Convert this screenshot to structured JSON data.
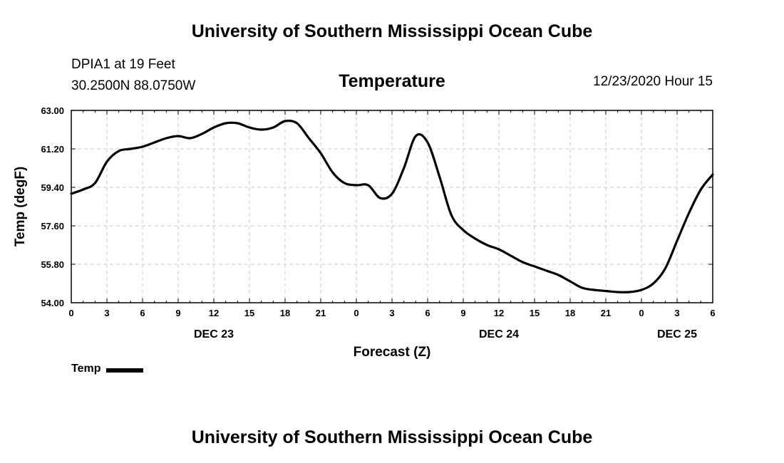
{
  "header": {
    "top_title": "University of Southern Mississippi Ocean Cube",
    "station_name": "DPIA1 at 19 Feet",
    "station_coords": "30.2500N 88.0750W",
    "variable_title": "Temperature",
    "run_time": "12/23/2020 Hour 15"
  },
  "footer": {
    "bottom_title": "University of Southern Mississippi Ocean Cube"
  },
  "legend": {
    "label": "Temp"
  },
  "colors": {
    "line": "#000000",
    "grid": "#c8c8c8",
    "background": "#ffffff"
  },
  "chart_data": {
    "type": "line",
    "title": "Temperature",
    "xlabel": "Forecast (Z)",
    "ylabel": "Temp (degF)",
    "grid": true,
    "legend_position": "bottom-left",
    "xlim": [
      0,
      54
    ],
    "ylim": [
      54.0,
      63.0
    ],
    "x_ticks": [
      0,
      3,
      6,
      9,
      12,
      15,
      18,
      21,
      24,
      27,
      30,
      33,
      36,
      39,
      42,
      45,
      48,
      51,
      54
    ],
    "x_tick_labels": [
      "0",
      "3",
      "6",
      "9",
      "12",
      "15",
      "18",
      "21",
      "0",
      "3",
      "6",
      "9",
      "12",
      "15",
      "18",
      "21",
      "0",
      "3",
      "6"
    ],
    "y_ticks": [
      54.0,
      55.8,
      57.6,
      59.4,
      61.2,
      63.0
    ],
    "y_tick_labels": [
      "54.00",
      "55.80",
      "57.60",
      "59.40",
      "61.20",
      "63.00"
    ],
    "day_labels": [
      {
        "x": 12,
        "label": "DEC 23"
      },
      {
        "x": 36,
        "label": "DEC 24"
      },
      {
        "x": 51,
        "label": "DEC 25"
      }
    ],
    "series": [
      {
        "name": "Temp",
        "x": [
          0,
          1,
          2,
          3,
          4,
          5,
          6,
          7,
          8,
          9,
          10,
          11,
          12,
          13,
          14,
          15,
          16,
          17,
          18,
          19,
          20,
          21,
          22,
          23,
          24,
          25,
          26,
          27,
          28,
          29,
          30,
          31,
          32,
          33,
          34,
          35,
          36,
          37,
          38,
          39,
          40,
          41,
          42,
          43,
          44,
          45,
          46,
          47,
          48,
          49,
          50,
          51,
          52,
          53,
          54
        ],
        "y": [
          59.1,
          59.3,
          59.6,
          60.6,
          61.1,
          61.2,
          61.3,
          61.5,
          61.7,
          61.8,
          61.7,
          61.9,
          62.2,
          62.4,
          62.4,
          62.2,
          62.1,
          62.2,
          62.5,
          62.4,
          61.7,
          61.0,
          60.1,
          59.6,
          59.5,
          59.5,
          58.9,
          59.1,
          60.3,
          61.8,
          61.5,
          59.9,
          58.1,
          57.4,
          57.0,
          56.7,
          56.5,
          56.2,
          55.9,
          55.7,
          55.5,
          55.3,
          55.0,
          54.7,
          54.6,
          54.55,
          54.5,
          54.5,
          54.6,
          54.9,
          55.6,
          56.9,
          58.2,
          59.3,
          60.0
        ]
      }
    ]
  }
}
